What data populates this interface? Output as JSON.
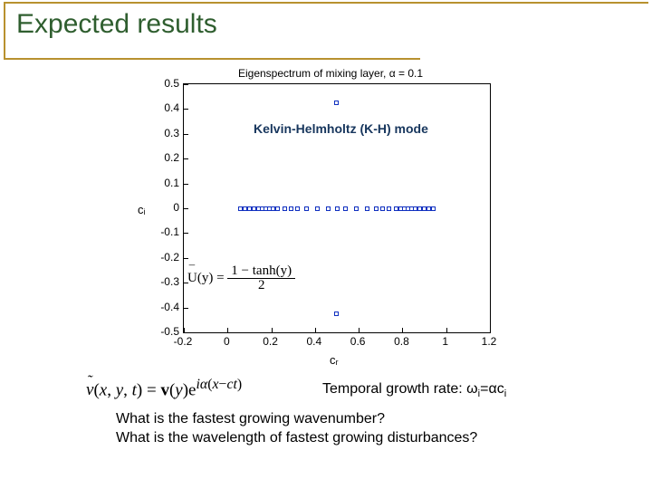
{
  "title": "Expected results",
  "chart": {
    "title": "Eigenspectrum of mixing layer, α = 0.1",
    "xlabel": "cᵣ",
    "ylabel": "cᵢ",
    "xlim": [
      -0.2,
      1.2
    ],
    "ylim": [
      -0.5,
      0.5
    ],
    "xticks": [
      -0.2,
      0,
      0.2,
      0.4,
      0.6,
      0.8,
      1,
      1.2
    ],
    "yticks": [
      -0.5,
      -0.4,
      -0.3,
      -0.2,
      -0.1,
      0,
      0.1,
      0.2,
      0.3,
      0.4,
      0.5
    ],
    "marker_color": "#1030c0",
    "background_color": "#ffffff",
    "points_upper": [
      [
        0.499,
        0.424
      ]
    ],
    "points_lower": [
      [
        0.499,
        -0.424
      ]
    ],
    "points_axis": [
      [
        0.06,
        0
      ],
      [
        0.08,
        0
      ],
      [
        0.1,
        0
      ],
      [
        0.12,
        0
      ],
      [
        0.14,
        0
      ],
      [
        0.16,
        0
      ],
      [
        0.175,
        0
      ],
      [
        0.19,
        0
      ],
      [
        0.21,
        0
      ],
      [
        0.23,
        0
      ],
      [
        0.26,
        0
      ],
      [
        0.29,
        0
      ],
      [
        0.32,
        0
      ],
      [
        0.36,
        0
      ],
      [
        0.41,
        0
      ],
      [
        0.46,
        0
      ],
      [
        0.5,
        0
      ],
      [
        0.54,
        0
      ],
      [
        0.59,
        0
      ],
      [
        0.64,
        0
      ],
      [
        0.68,
        0
      ],
      [
        0.71,
        0
      ],
      [
        0.74,
        0
      ],
      [
        0.77,
        0
      ],
      [
        0.79,
        0
      ],
      [
        0.81,
        0
      ],
      [
        0.825,
        0
      ],
      [
        0.84,
        0
      ],
      [
        0.86,
        0
      ],
      [
        0.88,
        0
      ],
      [
        0.9,
        0
      ],
      [
        0.92,
        0
      ],
      [
        0.94,
        0
      ]
    ]
  },
  "kh_label": "Kelvin-Helmholtz (K-H) mode",
  "u_formula_html": "<span style='position:relative;'><span style='position:absolute;top:-0.6em;left:0.14em;font-size:0.85em'>&#175;</span>U</span>(y) = <span style='display:inline-block;vertical-align:middle;text-align:center;line-height:1.0;'><span style='display:block;border-bottom:1px solid #000;padding:0 4px;'>1 − tanh(y)</span><span style='display:block;'>2</span></span>",
  "v_formula_html": "<span style='font-style:italic;position:relative;'><span style='position:absolute;top:-0.55em;left:0.05em;font-size:0.9em'>˜</span>v</span>(<span style='font-style:italic;'>x</span>, <span style='font-style:italic;'>y</span>, <span style='font-style:italic;'>t</span>) = <span style='font-weight:bold;'>v</span>(<span style='font-style:italic;'>y</span>)e<sup><span style='font-style:italic;'>iα</span>(<span style='font-style:italic;'>x</span>−<span style='font-style:italic;'>ct</span>)</sup>",
  "growth_rate_html": "Temporal growth rate: ω<sub>i</sub>=αc<sub>i</sub>",
  "q1": "What is the fastest growing wavenumber?",
  "q2": "What is the wavelength of fastest growing disturbances?",
  "colors": {
    "border": "#b8912f",
    "title_color": "#2f5e2f",
    "kh_color": "#17365d"
  }
}
